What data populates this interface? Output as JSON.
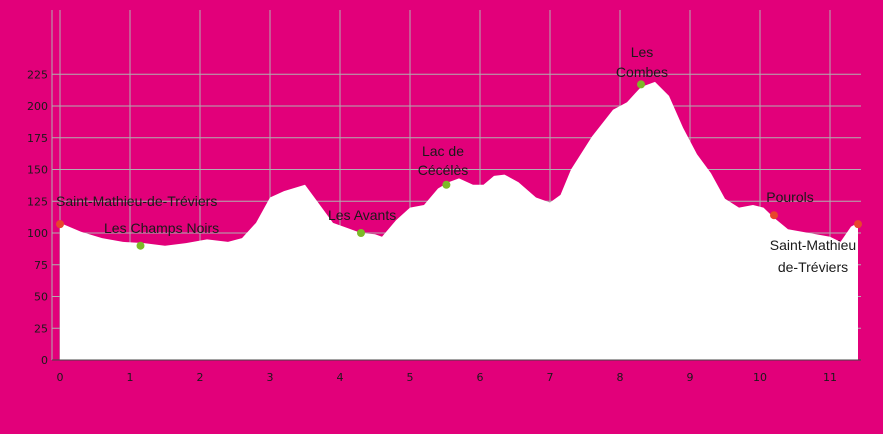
{
  "colors": {
    "background": "#E2007A",
    "grid": "#B0B0B0",
    "fill": "#FFFFFF",
    "axis": "#444444",
    "waypoint_green": "#7DB928",
    "waypoint_red": "#E8452C"
  },
  "chart_data": {
    "type": "area",
    "title": "",
    "xlabel": "",
    "ylabel": "",
    "xlim": [
      0,
      11.4
    ],
    "ylim": [
      0,
      250
    ],
    "grid": true,
    "x_ticks": [
      0,
      1,
      2,
      3,
      4,
      5,
      6,
      7,
      8,
      9,
      10,
      11
    ],
    "y_ticks": [
      0,
      25,
      50,
      75,
      100,
      125,
      150,
      175,
      200,
      225
    ],
    "profile": {
      "x": [
        0,
        0.3,
        0.6,
        0.9,
        1.2,
        1.5,
        1.8,
        2.1,
        2.4,
        2.6,
        2.8,
        3.0,
        3.2,
        3.5,
        3.7,
        3.9,
        4.1,
        4.3,
        4.5,
        4.6,
        4.8,
        5.0,
        5.2,
        5.4,
        5.55,
        5.7,
        5.9,
        6.05,
        6.2,
        6.35,
        6.55,
        6.8,
        7.0,
        7.15,
        7.3,
        7.6,
        7.9,
        8.1,
        8.3,
        8.5,
        8.7,
        8.9,
        9.1,
        9.3,
        9.5,
        9.7,
        9.9,
        10.05,
        10.2,
        10.4,
        10.6,
        10.8,
        11.0,
        11.15,
        11.3,
        11.4
      ],
      "y": [
        108,
        101,
        96,
        93,
        92,
        90,
        92,
        95,
        93,
        96,
        108,
        128,
        133,
        138,
        123,
        108,
        104,
        100,
        99,
        97,
        110,
        120,
        122,
        135,
        140,
        143,
        138,
        138,
        145,
        146,
        140,
        128,
        124,
        130,
        150,
        176,
        197,
        203,
        215,
        219,
        208,
        183,
        162,
        147,
        127,
        120,
        122,
        120,
        112,
        103,
        101,
        99,
        97,
        93,
        105,
        108
      ]
    },
    "waypoints": [
      {
        "name": "Saint-Mathieu-de-Tréviers",
        "x": 0.0,
        "y": 107,
        "color": "red"
      },
      {
        "name": "Les Champs Noirs",
        "x": 1.15,
        "y": 90,
        "color": "green"
      },
      {
        "name": "Les Avants",
        "x": 4.3,
        "y": 100,
        "color": "green"
      },
      {
        "name": "Lac de Cécélès",
        "x": 5.52,
        "y": 138,
        "color": "green"
      },
      {
        "name": "Les Combes",
        "x": 8.3,
        "y": 217,
        "color": "green"
      },
      {
        "name": "Pourols",
        "x": 10.2,
        "y": 114,
        "color": "red"
      },
      {
        "name": "Saint-Mathieu de-Tréviers",
        "x": 11.4,
        "y": 107,
        "color": "red"
      }
    ]
  },
  "labels": {
    "start": "Saint-Mathieu-de-Tréviers",
    "champs": "Les Champs Noirs",
    "avants": "Les Avants",
    "lac_line1": "Lac de",
    "lac_line2": "Cécélès",
    "combes_line1": "Les",
    "combes_line2": "Combes",
    "pourols": "Pourols",
    "end_line1": "Saint-Mathieu",
    "end_line2": "de-Tréviers"
  }
}
